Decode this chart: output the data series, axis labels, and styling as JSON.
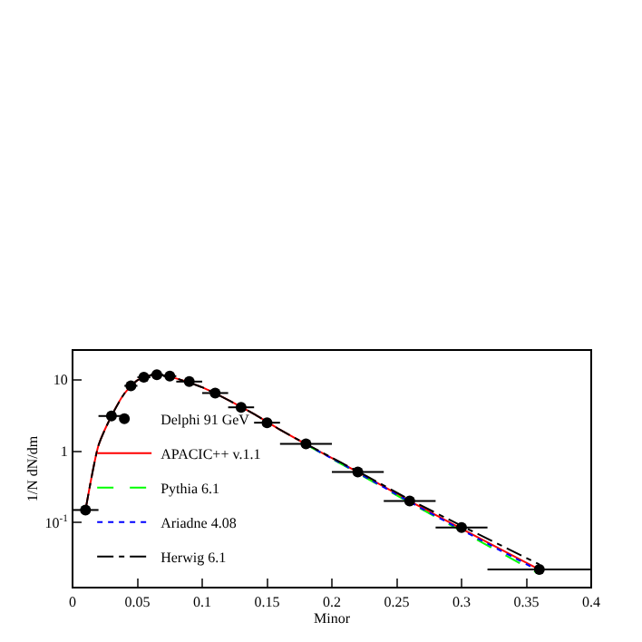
{
  "chart_data": {
    "type": "scatter",
    "xlabel": "Minor",
    "ylabel": "1/N dN/dm",
    "log": "y",
    "xlim": [
      0,
      0.4
    ],
    "xticks": [
      0,
      0.05,
      0.1,
      0.15,
      0.2,
      0.25,
      0.3,
      0.35,
      0.4
    ],
    "ylim": [
      0.0123,
      26
    ],
    "yticks": [
      {
        "value": 0.1,
        "label": "10$^{-1}$"
      },
      1,
      10
    ],
    "legend": "bottom left",
    "series": [
      {
        "name": "Delphi 91 GeV",
        "marker": "circle",
        "color": "#000000",
        "x": [
          0.01,
          0.03,
          0.045,
          0.055,
          0.065,
          0.075,
          0.09,
          0.11,
          0.13,
          0.15,
          0.18,
          0.22,
          0.26,
          0.3,
          0.36
        ],
        "values": [
          0.15,
          3.1,
          8.2,
          10.8,
          11.7,
          11.2,
          9.4,
          6.5,
          4.1,
          2.5,
          1.26,
          0.51,
          0.2,
          0.085,
          0.022
        ],
        "xerrors": [
          0.01,
          0.01,
          0.005,
          0.005,
          0.005,
          0.005,
          0.01,
          0.01,
          0.01,
          0.01,
          0.02,
          0.02,
          0.02,
          0.02,
          0.04
        ]
      },
      {
        "name": "APACIC++ v.1.1",
        "type": "line",
        "line_style": "solid",
        "color": "#ff0000",
        "x": [
          0.01,
          0.02,
          0.03,
          0.04,
          0.05,
          0.06,
          0.07,
          0.08,
          0.1,
          0.12,
          0.14,
          0.16,
          0.18,
          0.2,
          0.22,
          0.26,
          0.3,
          0.36
        ],
        "values": [
          0.15,
          1.2,
          3.1,
          6.4,
          9.8,
          11.5,
          11.5,
          10.4,
          7.8,
          5.2,
          3.3,
          2.0,
          1.25,
          0.8,
          0.51,
          0.2,
          0.082,
          0.022
        ]
      },
      {
        "name": "Pythia 6.1",
        "type": "line",
        "line_style": "dashed",
        "color": "#00ff00",
        "x": [
          0.18,
          0.2,
          0.22,
          0.26,
          0.3,
          0.36
        ],
        "values": [
          1.24,
          0.78,
          0.49,
          0.19,
          0.076,
          0.019
        ]
      },
      {
        "name": "Ariadne 4.08",
        "type": "line",
        "line_style": "dotted",
        "color": "#0000ff",
        "x": [
          0.18,
          0.2,
          0.22,
          0.26,
          0.3,
          0.36
        ],
        "values": [
          1.24,
          0.79,
          0.5,
          0.195,
          0.079,
          0.021
        ]
      },
      {
        "name": "Herwig 6.1",
        "type": "line",
        "line_style": "dashdot",
        "color": "#000000",
        "x": [
          0.01,
          0.02,
          0.03,
          0.04,
          0.05,
          0.06,
          0.07,
          0.08,
          0.1,
          0.12,
          0.14,
          0.16,
          0.18,
          0.2,
          0.22,
          0.26,
          0.3,
          0.36
        ],
        "values": [
          0.15,
          1.2,
          3.1,
          6.4,
          9.8,
          11.5,
          11.5,
          10.4,
          7.8,
          5.2,
          3.3,
          2.0,
          1.26,
          0.81,
          0.52,
          0.21,
          0.09,
          0.026
        ]
      }
    ]
  }
}
